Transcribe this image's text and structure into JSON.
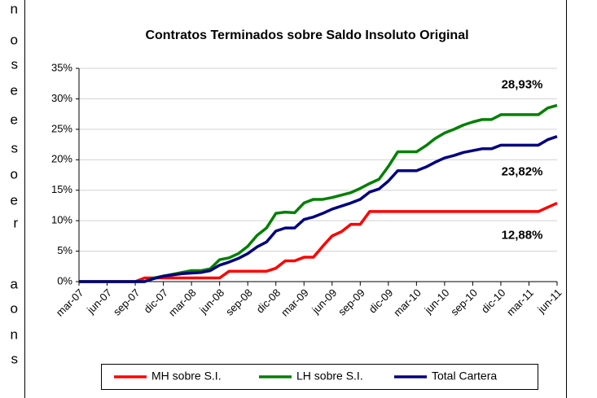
{
  "margin_text": [
    "n",
    "o",
    "s",
    "e",
    "e",
    "s",
    "o",
    "e",
    "r",
    "a",
    "o",
    "n",
    "s"
  ],
  "chart_data": {
    "type": "line",
    "title": "Contratos Terminados sobre Saldo Insoluto Original",
    "categories": [
      "mar-07",
      null,
      null,
      "jun-07",
      null,
      null,
      "sep-07",
      null,
      null,
      "dic-07",
      null,
      null,
      "mar-08",
      null,
      null,
      "jun-08",
      null,
      null,
      "sep-08",
      null,
      null,
      "dic-08",
      null,
      null,
      "mar-09",
      null,
      null,
      "jun-09",
      null,
      null,
      "sep-09",
      null,
      null,
      "dic-09",
      null,
      null,
      "mar-10",
      null,
      null,
      "jun-10",
      null,
      null,
      "sep-10",
      null,
      null,
      "dic-10",
      null,
      null,
      "mar-11",
      null,
      null,
      "jun-11"
    ],
    "series": [
      {
        "name": "MH sobre S.I.",
        "color": "#ff0000",
        "values": [
          0,
          0,
          0,
          0,
          0,
          0,
          0,
          0.6,
          0.6,
          0.6,
          0.6,
          0.6,
          0.6,
          0.6,
          0.6,
          0.6,
          1.7,
          1.7,
          1.7,
          1.7,
          1.7,
          2.2,
          3.4,
          3.4,
          4.0,
          4.0,
          5.8,
          7.5,
          8.2,
          9.4,
          9.4,
          11.5,
          11.5,
          11.5,
          11.5,
          11.5,
          11.5,
          11.5,
          11.5,
          11.5,
          11.5,
          11.5,
          11.5,
          11.5,
          11.5,
          11.5,
          11.5,
          11.5,
          11.5,
          11.5,
          12.2,
          12.88
        ],
        "value_labels": [
          null,
          null,
          null,
          null,
          null,
          null,
          null,
          null,
          null,
          null,
          null,
          null,
          null,
          null,
          null,
          null,
          null,
          null,
          null,
          null,
          null,
          null,
          null,
          null,
          null,
          null,
          null,
          null,
          null,
          null,
          null,
          null,
          null,
          null,
          null,
          null,
          null,
          null,
          null,
          null,
          null,
          null,
          null,
          null,
          null,
          null,
          null,
          null,
          null,
          null,
          null,
          "12,88%"
        ]
      },
      {
        "name": "LH sobre S.I.",
        "color": "#008000",
        "values": [
          0,
          0,
          0,
          0,
          0,
          0,
          0,
          0,
          0.6,
          0.9,
          1.2,
          1.5,
          1.8,
          1.8,
          2.1,
          3.6,
          3.9,
          4.6,
          5.8,
          7.6,
          8.8,
          11.2,
          11.4,
          11.3,
          12.9,
          13.5,
          13.5,
          13.8,
          14.2,
          14.6,
          15.3,
          16.1,
          16.8,
          18.9,
          21.3,
          21.3,
          21.3,
          22.3,
          23.5,
          24.4,
          25.0,
          25.7,
          26.2,
          26.6,
          26.6,
          27.4,
          27.4,
          27.4,
          27.4,
          27.4,
          28.5,
          28.93
        ],
        "value_labels": [
          null,
          null,
          null,
          null,
          null,
          null,
          null,
          null,
          null,
          null,
          null,
          null,
          null,
          null,
          null,
          null,
          null,
          null,
          null,
          null,
          null,
          null,
          null,
          null,
          null,
          null,
          null,
          null,
          null,
          null,
          null,
          null,
          null,
          null,
          null,
          null,
          null,
          null,
          null,
          null,
          null,
          null,
          null,
          null,
          null,
          null,
          null,
          null,
          null,
          null,
          null,
          "28,93%"
        ]
      },
      {
        "name": "Total Cartera",
        "color": "#000080",
        "values": [
          0,
          0,
          0,
          0,
          0,
          0,
          0,
          0,
          0.5,
          0.9,
          1.1,
          1.3,
          1.4,
          1.5,
          1.8,
          2.7,
          3.2,
          3.8,
          4.6,
          5.7,
          6.5,
          8.3,
          8.8,
          8.8,
          10.2,
          10.6,
          11.2,
          11.9,
          12.4,
          12.9,
          13.5,
          14.7,
          15.2,
          16.5,
          18.2,
          18.2,
          18.2,
          18.8,
          19.6,
          20.3,
          20.7,
          21.2,
          21.5,
          21.8,
          21.8,
          22.4,
          22.4,
          22.4,
          22.4,
          22.4,
          23.3,
          23.82
        ],
        "value_labels": [
          null,
          null,
          null,
          null,
          null,
          null,
          null,
          null,
          null,
          null,
          null,
          null,
          null,
          null,
          null,
          null,
          null,
          null,
          null,
          null,
          null,
          null,
          null,
          null,
          null,
          null,
          null,
          null,
          null,
          null,
          null,
          null,
          null,
          null,
          null,
          null,
          null,
          null,
          null,
          null,
          null,
          null,
          null,
          null,
          null,
          null,
          null,
          null,
          null,
          null,
          null,
          "23,82%"
        ]
      }
    ],
    "ylim": [
      0,
      35
    ],
    "yticks": [
      {
        "value": 0,
        "label": "0%"
      },
      {
        "value": 5,
        "label": "5%"
      },
      {
        "value": 10,
        "label": "10%"
      },
      {
        "value": 15,
        "label": "15%"
      },
      {
        "value": 20,
        "label": "20%"
      },
      {
        "value": 25,
        "label": "25%"
      },
      {
        "value": 30,
        "label": "30%"
      },
      {
        "value": 35,
        "label": "35%"
      }
    ],
    "grid": true,
    "legend": "bottom"
  }
}
